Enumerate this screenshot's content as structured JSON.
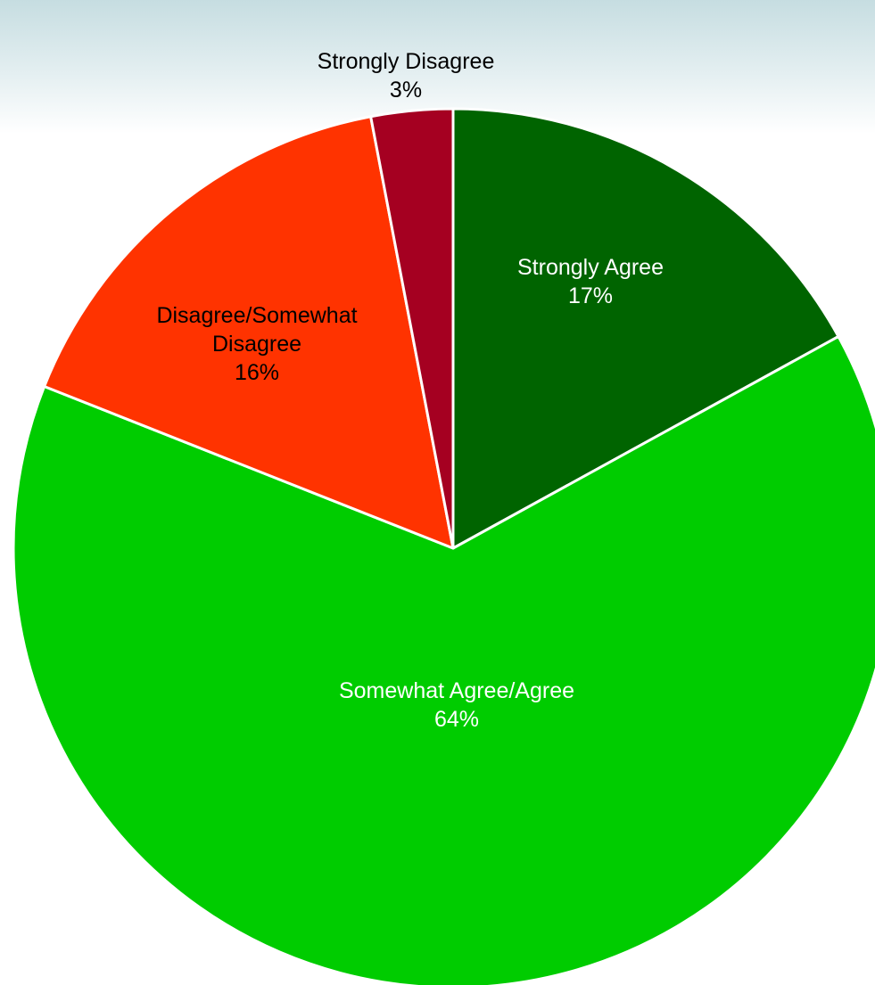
{
  "chart_data": {
    "type": "pie",
    "title": "",
    "start_angle_deg": 0,
    "direction": "clockwise",
    "slices": [
      {
        "label_lines": [
          "Strongly Agree"
        ],
        "value": 17,
        "value_label": "17%",
        "color": "#006400",
        "label_color": "#ffffff"
      },
      {
        "label_lines": [
          "Somewhat Agree/Agree"
        ],
        "value": 64,
        "value_label": "64%",
        "color": "#00cc00",
        "label_color": "#ffffff"
      },
      {
        "label_lines": [
          "Disagree/Somewhat",
          "Disagree"
        ],
        "value": 16,
        "value_label": "16%",
        "color": "#ff3300",
        "label_color": "#000000"
      },
      {
        "label_lines": [
          "Strongly Disagree"
        ],
        "value": 3,
        "value_label": "3%",
        "color": "#a50021",
        "label_color": "#000000"
      }
    ]
  }
}
